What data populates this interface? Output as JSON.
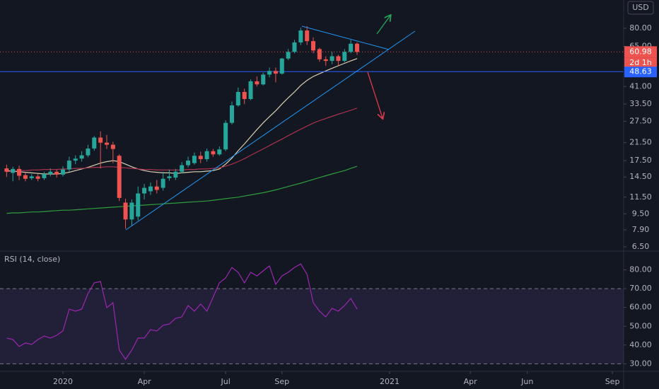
{
  "header": {
    "currency": "USD"
  },
  "chart_data": [
    {
      "type": "candlestick",
      "x": [
        -9,
        -8,
        -7,
        -6,
        -5,
        -4,
        -3,
        -2,
        -1,
        0,
        1,
        2,
        3,
        4,
        5,
        6,
        7,
        8,
        9,
        10,
        11,
        12,
        13,
        14,
        15,
        16,
        17,
        18,
        19,
        20,
        21,
        22,
        23,
        24,
        25,
        26,
        27,
        28,
        29,
        30,
        31,
        32,
        33,
        34,
        35,
        36,
        37,
        38,
        39,
        40,
        41,
        42,
        43,
        44,
        45,
        46,
        47
      ],
      "open": [
        16.0,
        15.2,
        15.9,
        14.8,
        14.3,
        14.6,
        14.3,
        15.0,
        15.4,
        14.9,
        15.8,
        17.5,
        17.9,
        18.6,
        20.1,
        22.8,
        21.5,
        21.0,
        18.5,
        10.8,
        8.9,
        9.2,
        12.0,
        12.3,
        13.0,
        12.8,
        14.3,
        14.4,
        15.4,
        16.6,
        17.0,
        18.5,
        17.8,
        19.5,
        18.8,
        19.9,
        27.0,
        33.0,
        38.5,
        35.5,
        43.5,
        42.0,
        47.0,
        49.0,
        47.5,
        56.5,
        61.0,
        68.0,
        78.0,
        69.0,
        63.0,
        56,
        55,
        58,
        55,
        61,
        67
      ],
      "high": [
        16.7,
        16.3,
        16.5,
        15.3,
        15.0,
        15.0,
        15.4,
        16.0,
        15.8,
        16.4,
        18.3,
        18.6,
        19.5,
        21.0,
        23.2,
        24.5,
        23.5,
        21.7,
        18.8,
        11.3,
        11.2,
        13.0,
        13.4,
        13.6,
        14.0,
        15.4,
        15.8,
        15.9,
        17.2,
        18.3,
        19.2,
        19.4,
        20.1,
        20.0,
        20.6,
        27.8,
        34.5,
        40.5,
        40.0,
        44.5,
        46.0,
        48.0,
        51.0,
        51.0,
        57.0,
        63.0,
        70.0,
        80.5,
        82.0,
        72.0,
        64.0,
        58,
        61,
        59,
        63,
        70,
        68
      ],
      "low": [
        14.5,
        13.8,
        14.0,
        13.8,
        14.0,
        13.8,
        14.0,
        14.6,
        14.4,
        14.6,
        15.4,
        16.8,
        17.3,
        18.2,
        19.6,
        16.0,
        20.0,
        17.0,
        11.0,
        8.0,
        8.3,
        8.8,
        11.2,
        11.8,
        12.0,
        12.4,
        13.9,
        14.0,
        15.1,
        16.2,
        16.7,
        17.0,
        17.3,
        18.3,
        18.5,
        19.5,
        26.5,
        32.5,
        33.5,
        35.0,
        41.0,
        41.5,
        45.5,
        43.0,
        47.0,
        55.5,
        60.0,
        66.0,
        66.0,
        60.0,
        54.5,
        52,
        53,
        52,
        54,
        60,
        59
      ],
      "close": [
        15.4,
        15.9,
        14.7,
        14.2,
        14.6,
        14.2,
        15.0,
        15.4,
        14.9,
        15.8,
        17.5,
        17.9,
        18.6,
        20.1,
        22.8,
        21.5,
        21.0,
        20.0,
        11.4,
        8.9,
        10.8,
        12.0,
        12.8,
        13.0,
        12.5,
        14.2,
        14.6,
        15.4,
        16.6,
        17.5,
        18.5,
        17.8,
        19.5,
        18.8,
        19.9,
        27.0,
        33.0,
        38.5,
        35.5,
        43.5,
        42.0,
        47.0,
        49.0,
        47.5,
        56.5,
        61.0,
        68.0,
        78.0,
        69.0,
        62.0,
        56.0,
        55,
        58,
        55,
        61,
        67,
        60.98
      ],
      "up_color": "#26a69a",
      "down_color": "#ef5350",
      "series": [
        {
          "color": "#d9cfb0",
          "values": [
            15.6,
            15.5,
            15.4,
            15.3,
            15.2,
            15.1,
            15.0,
            15.0,
            15.0,
            15.1,
            15.3,
            15.6,
            15.9,
            16.2,
            16.6,
            17.0,
            17.3,
            17.5,
            17.3,
            16.8,
            16.3,
            15.9,
            15.6,
            15.4,
            15.3,
            15.2,
            15.2,
            15.1,
            15.2,
            15.3,
            15.4,
            15.4,
            15.5,
            15.6,
            15.9,
            16.8,
            18.0,
            19.6,
            21.2,
            23.0,
            25.0,
            27.0,
            29.0,
            31.0,
            33.5,
            36.0,
            38.5,
            41.5,
            44.0,
            46.0,
            47.5,
            49.0,
            50.5,
            52.0,
            53.5,
            55.0,
            56.5
          ]
        },
        {
          "color": "#a8324e",
          "values": [
            15.4,
            15.5,
            15.6,
            15.6,
            15.7,
            15.7,
            15.8,
            15.8,
            15.8,
            15.9,
            15.9,
            16.0,
            16.0,
            16.1,
            16.2,
            16.2,
            16.3,
            16.3,
            16.2,
            16.1,
            16.0,
            15.9,
            15.8,
            15.8,
            15.7,
            15.7,
            15.7,
            15.7,
            15.7,
            15.8,
            15.8,
            15.9,
            15.9,
            16.0,
            16.1,
            16.4,
            16.8,
            17.3,
            17.9,
            18.6,
            19.3,
            20.0,
            20.8,
            21.6,
            22.4,
            23.3,
            24.2,
            25.1,
            26.0,
            26.9,
            27.7,
            28.4,
            29.1,
            29.8,
            30.5,
            31.2,
            32.0
          ]
        },
        {
          "color": "#2e9e3e",
          "values": [
            9.55,
            9.6,
            9.6,
            9.65,
            9.7,
            9.7,
            9.75,
            9.8,
            9.85,
            9.9,
            9.9,
            9.95,
            10.0,
            10.05,
            10.1,
            10.15,
            10.2,
            10.25,
            10.3,
            10.35,
            10.4,
            10.45,
            10.5,
            10.55,
            10.6,
            10.65,
            10.7,
            10.75,
            10.8,
            10.85,
            10.9,
            10.95,
            11.0,
            11.1,
            11.2,
            11.3,
            11.4,
            11.5,
            11.65,
            11.8,
            11.95,
            12.1,
            12.3,
            12.5,
            12.75,
            13.0,
            13.25,
            13.5,
            13.8,
            14.1,
            14.4,
            14.7,
            15.0,
            15.3,
            15.6,
            16.0,
            16.4
          ]
        }
      ],
      "log_scale": true,
      "ylim": [
        6.19,
        110.7
      ],
      "yticks": [
        {
          "value": 80,
          "label": "80.00"
        },
        {
          "value": 65,
          "label": "65.00"
        },
        {
          "value": 41,
          "label": "41.00"
        },
        {
          "value": 33.5,
          "label": "33.50"
        },
        {
          "value": 27.5,
          "label": "27.50"
        },
        {
          "value": 21.5,
          "label": "21.50"
        },
        {
          "value": 17.5,
          "label": "17.50"
        },
        {
          "value": 14.5,
          "label": "14.50"
        },
        {
          "value": 11.5,
          "label": "11.50"
        },
        {
          "value": 9.5,
          "label": "9.50"
        },
        {
          "value": 7.9,
          "label": "7.90"
        },
        {
          "value": 6.5,
          "label": "6.50"
        }
      ],
      "xlim": [
        -10.06,
        89.6
      ],
      "xticks": [
        {
          "value": 0,
          "label": "2020"
        },
        {
          "value": 13,
          "label": "Apr"
        },
        {
          "value": 26,
          "label": "Jul"
        },
        {
          "value": 35,
          "label": "Sep"
        },
        {
          "value": 52.2,
          "label": "2021"
        },
        {
          "value": 65.1,
          "label": "Apr"
        },
        {
          "value": 74.2,
          "label": "Jun"
        },
        {
          "value": 87.8,
          "label": "Sep"
        }
      ],
      "last_price": {
        "value": 60.98,
        "label": "60.98"
      },
      "countdown": "2d 1h",
      "level": {
        "value": 48.63,
        "label": "48.63",
        "color": "#2962ff"
      }
    },
    {
      "type": "line",
      "title": "RSI (14, close)",
      "x": [
        -9,
        -8,
        -7,
        -6,
        -5,
        -4,
        -3,
        -2,
        -1,
        0,
        1,
        2,
        3,
        4,
        5,
        6,
        7,
        8,
        9,
        10,
        11,
        12,
        13,
        14,
        15,
        16,
        17,
        18,
        19,
        20,
        21,
        22,
        23,
        24,
        25,
        26,
        27,
        28,
        29,
        30,
        31,
        32,
        33,
        34,
        35,
        36,
        37,
        38,
        39,
        40,
        41,
        42,
        43,
        44,
        45,
        46,
        47
      ],
      "values": [
        43.7,
        42.9,
        39.2,
        41.1,
        40.3,
        42.9,
        44.8,
        43.7,
        45.2,
        47.5,
        59.1,
        58.0,
        59.1,
        67.4,
        73.1,
        73.8,
        59.9,
        62.5,
        37.3,
        32.4,
        37.3,
        43.7,
        43.7,
        48.2,
        47.5,
        50.5,
        51.2,
        54.2,
        55.0,
        61.0,
        58.0,
        61.8,
        58.0,
        65.5,
        73.1,
        75.7,
        81.3,
        78.7,
        73.1,
        78.7,
        76.8,
        79.5,
        82.1,
        72.3,
        76.8,
        78.7,
        81.3,
        83.2,
        77.6,
        62.5,
        58.0,
        55.0,
        59.5,
        58.0,
        61.0,
        64.8,
        59.1
      ],
      "color": "#9c27b0",
      "ylim": [
        26,
        90
      ],
      "yticks": [
        {
          "value": 80,
          "label": "80.00"
        },
        {
          "value": 70,
          "label": "70.00"
        },
        {
          "value": 60,
          "label": "60.00"
        },
        {
          "value": 50,
          "label": "50.00"
        },
        {
          "value": 40,
          "label": "40.00"
        },
        {
          "value": 30,
          "label": "30.00"
        }
      ],
      "band": [
        30,
        70
      ]
    }
  ]
}
